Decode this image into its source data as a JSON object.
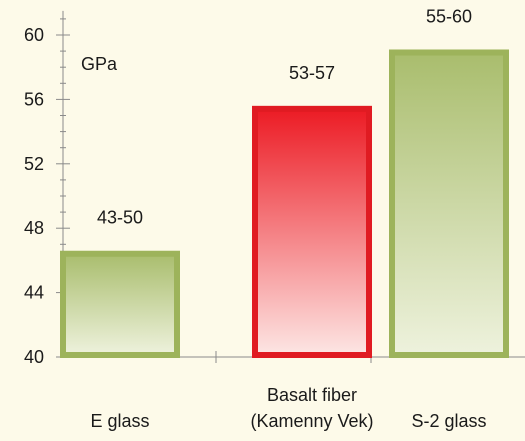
{
  "chart_data": {
    "type": "bar",
    "categories": [
      [
        "E glass"
      ],
      [
        "Basalt fiber",
        "(Kamenny Vek)"
      ],
      [
        "S-2 glass"
      ]
    ],
    "values": [
      46.6,
      55.6,
      59.1
    ],
    "bar_labels": [
      "43-50",
      "53-57",
      "55-60"
    ],
    "bar_styles": [
      "green",
      "red",
      "green"
    ],
    "ylabel": "GPa",
    "ylim": [
      40,
      61.5
    ],
    "yticks": [
      40,
      44,
      48,
      52,
      56,
      60
    ],
    "minor_tick_step": 1,
    "grid": false
  },
  "colors": {
    "background": "#fdfae9",
    "axis": "#8a8a8a",
    "green_top": "#a9bd6d",
    "green_bottom": "#eef2dd",
    "green_border": "#9db35b",
    "red_top": "#ec1b24",
    "red_bottom": "#fde6e4",
    "red_border": "#e01b22"
  }
}
